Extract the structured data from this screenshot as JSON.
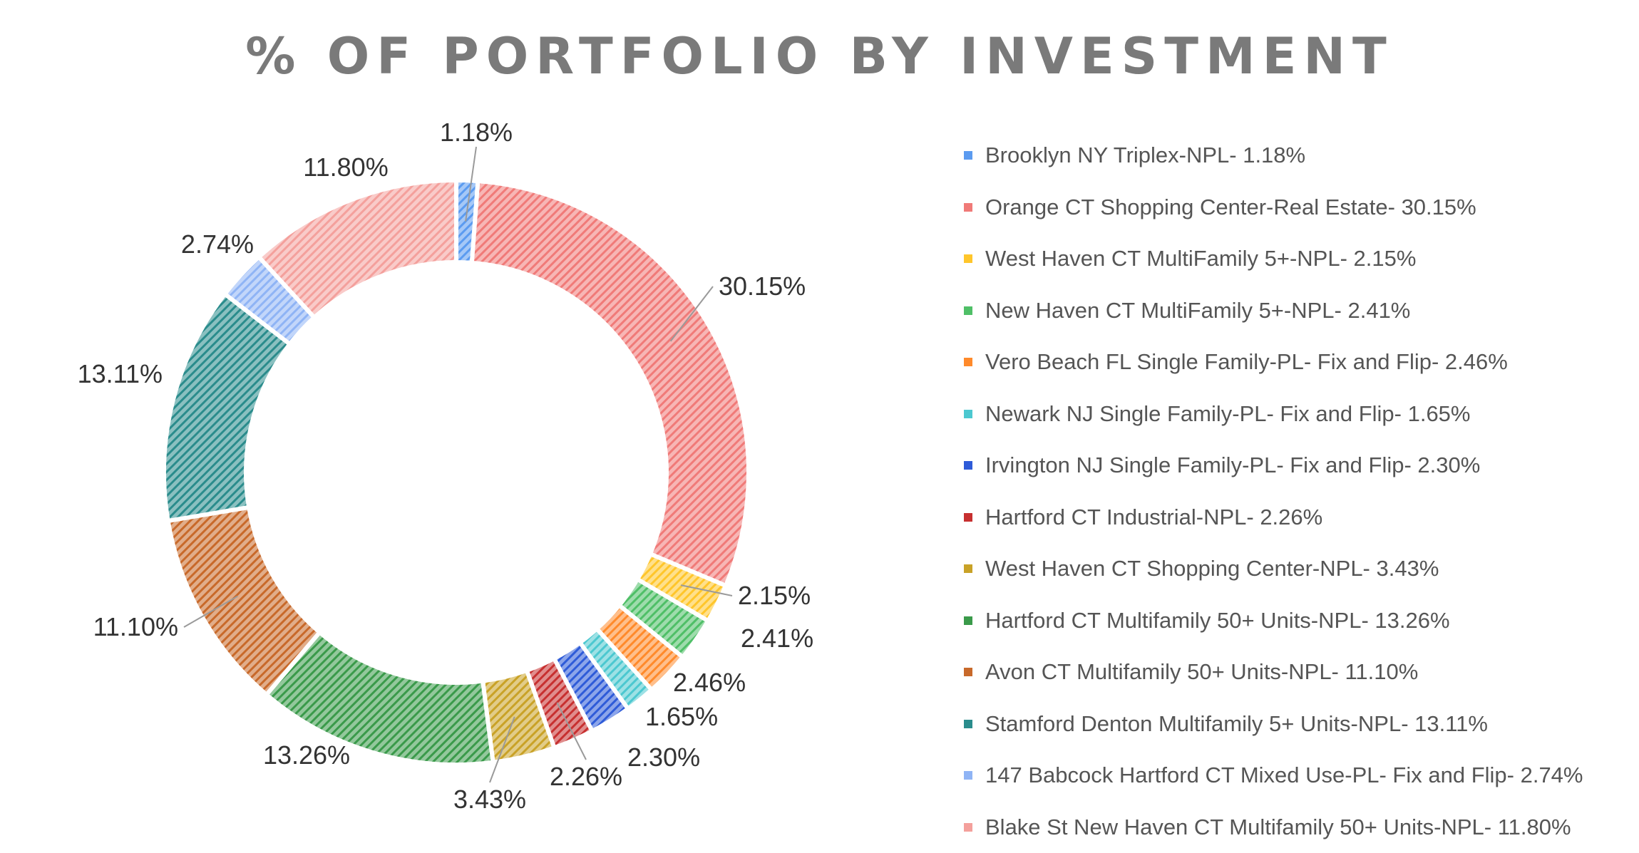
{
  "chart_data": {
    "type": "pie",
    "title": "% OF PORTFOLIO BY INVESTMENT",
    "legend_position": "right",
    "slices": [
      {
        "legend_label": "Brooklyn NY Triplex-NPL- 1.18%",
        "data_label": "1.18%",
        "value": 1.18,
        "color": "#5b9bf0"
      },
      {
        "legend_label": "Orange CT Shopping Center-Real Estate- 30.15%",
        "data_label": "30.15%",
        "value": 30.15,
        "color": "#f07a78"
      },
      {
        "legend_label": "West Haven CT MultiFamily 5+-NPL- 2.15%",
        "data_label": "2.15%",
        "value": 2.15,
        "color": "#ffc62b"
      },
      {
        "legend_label": "New Haven CT MultiFamily 5+-NPL- 2.41%",
        "data_label": "2.41%",
        "value": 2.41,
        "color": "#4fbf67"
      },
      {
        "legend_label": "Vero Beach FL Single Family-PL- Fix and Flip- 2.46%",
        "data_label": "2.46%",
        "value": 2.46,
        "color": "#ff8a2b"
      },
      {
        "legend_label": "Newark NJ Single Family-PL- Fix and Flip- 1.65%",
        "data_label": "1.65%",
        "value": 1.65,
        "color": "#4cc8d0"
      },
      {
        "legend_label": "Irvington NJ Single Family-PL- Fix and Flip- 2.30%",
        "data_label": "2.30%",
        "value": 2.3,
        "color": "#2e5bd8"
      },
      {
        "legend_label": "Hartford CT Industrial-NPL- 2.26%",
        "data_label": "2.26%",
        "value": 2.26,
        "color": "#c73030"
      },
      {
        "legend_label": "West Haven CT Shopping Center-NPL- 3.43%",
        "data_label": "3.43%",
        "value": 3.43,
        "color": "#c9a227"
      },
      {
        "legend_label": "Hartford CT Multifamily 50+ Units-NPL- 13.26%",
        "data_label": "13.26%",
        "value": 13.26,
        "color": "#3a9a4a"
      },
      {
        "legend_label": "Avon CT Multifamily 50+ Units-NPL- 11.10%",
        "data_label": "11.10%",
        "value": 11.1,
        "color": "#c8692a"
      },
      {
        "legend_label": "Stamford Denton Multifamily 5+ Units-NPL- 13.11%",
        "data_label": "13.11%",
        "value": 13.11,
        "color": "#2a8c8c"
      },
      {
        "legend_label": "147 Babcock Hartford CT Mixed Use-PL- Fix and Flip- 2.74%",
        "data_label": "2.74%",
        "value": 2.74,
        "color": "#8fb4f5"
      },
      {
        "legend_label": "Blake St New Haven CT Multifamily 50+ Units-NPL- 11.80%",
        "data_label": "11.80%",
        "value": 11.8,
        "color": "#f4a09c"
      }
    ]
  }
}
